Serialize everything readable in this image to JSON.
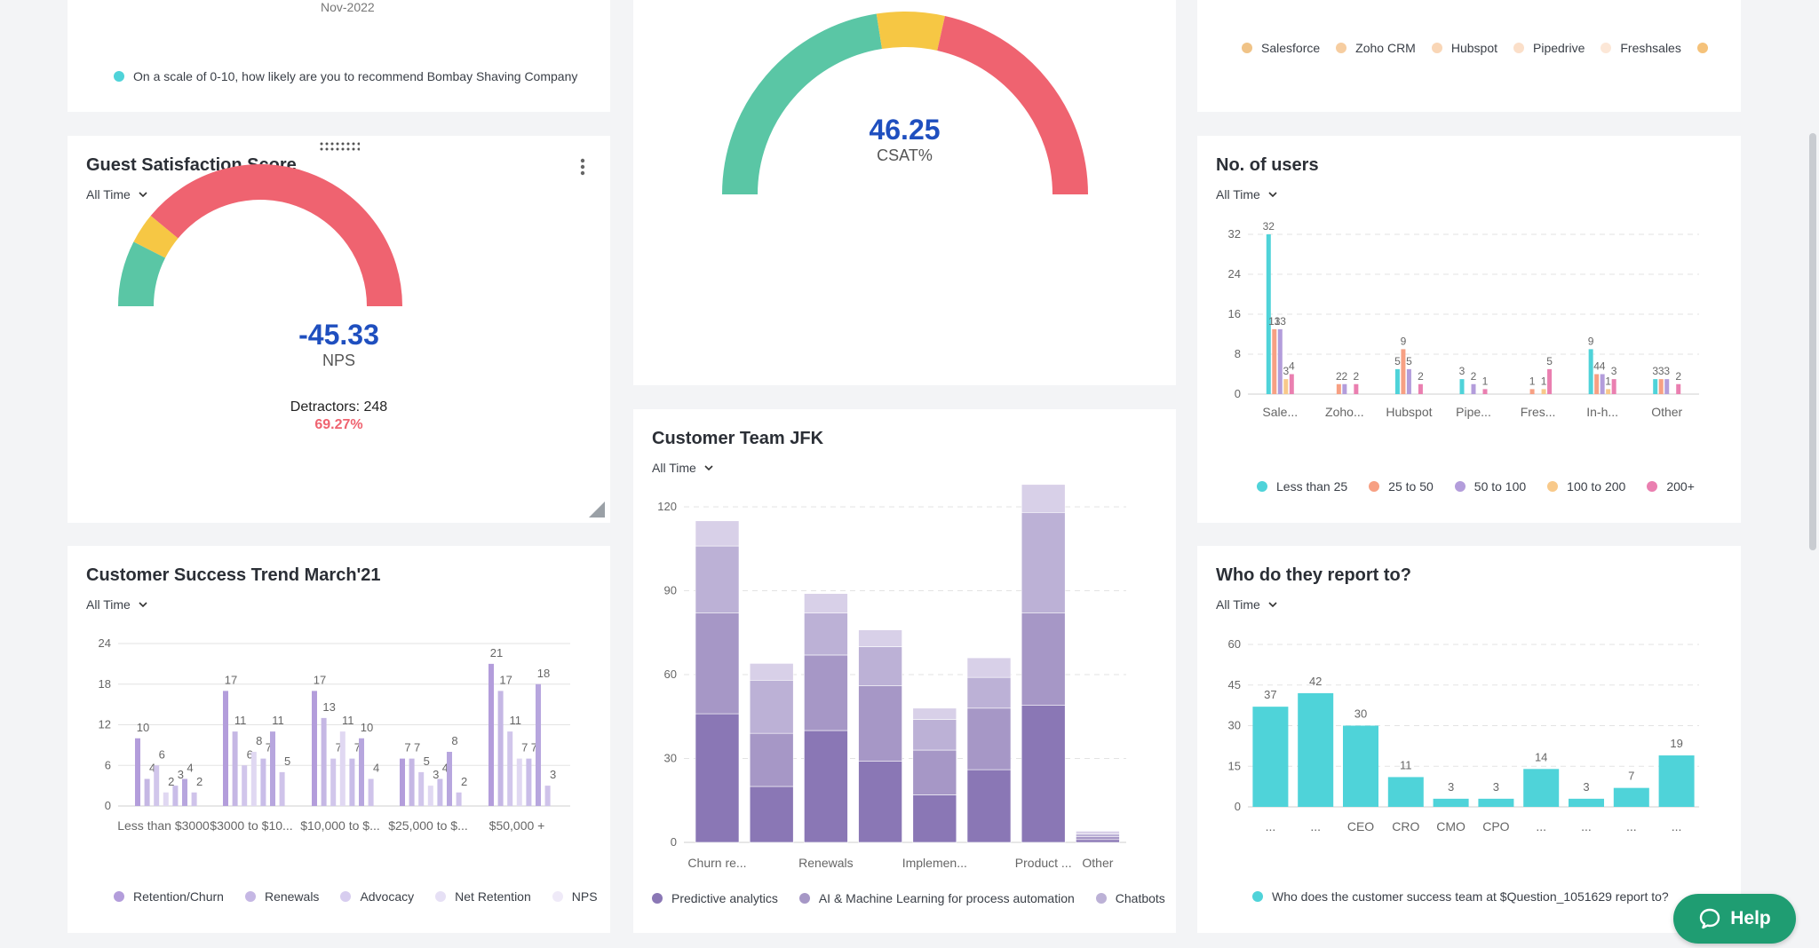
{
  "nps_card": {
    "partial_date": "Nov-2022",
    "legend": "On a scale of 0-10, how likely are you to recommend Bombay Shaving Company"
  },
  "gss_card": {
    "title": "Guest Satisfaction Score",
    "filter": "All Time",
    "value": "-45.33",
    "metric": "NPS",
    "detractors_label": "Detractors: 248",
    "detractors_pct": "69.27%",
    "gauge": {
      "promoters_fraction": 0.15,
      "passives_fraction": 0.07,
      "detractors_fraction": 0.78
    },
    "colors": {
      "green": "#5ac6a5",
      "yellow": "#f6c744",
      "red": "#ef6370",
      "value": "#1f4fbf",
      "pct": "#ef6370"
    }
  },
  "csat_card": {
    "value": "46.25",
    "metric": "CSAT%",
    "gauge": {
      "green_fraction": 0.45,
      "yellow_fraction": 0.12,
      "red_fraction": 0.43
    }
  },
  "crm_card": {
    "legend": [
      {
        "name": "Salesforce",
        "color": "#f0c387"
      },
      {
        "name": "Zoho CRM",
        "color": "#f6cda0"
      },
      {
        "name": "Hubspot",
        "color": "#f9d6b6"
      },
      {
        "name": "Pipedrive",
        "color": "#fbdfc9"
      },
      {
        "name": "Freshsales",
        "color": "#fce7d7"
      },
      {
        "name": "",
        "color": "#f5c27a"
      }
    ]
  },
  "users_card": {
    "title": "No. of users",
    "filter": "All Time",
    "chart_data": {
      "type": "bar",
      "categories": [
        "Sale...",
        "Zoho...",
        "Hubspot",
        "Pipe...",
        "Fres...",
        "In-h...",
        "Other"
      ],
      "yticks": [
        "0",
        "8",
        "16",
        "24",
        "32"
      ],
      "ylim": [
        0,
        32
      ],
      "series": [
        {
          "name": "Less than 25",
          "color": "#4fd3d9",
          "values": [
            32,
            0,
            5,
            3,
            0,
            9,
            3
          ]
        },
        {
          "name": "25 to 50",
          "color": "#f7a083",
          "values": [
            13,
            2,
            9,
            0,
            1,
            4,
            3
          ]
        },
        {
          "name": "50 to 100",
          "color": "#b39ddb",
          "values": [
            13,
            2,
            5,
            2,
            0,
            4,
            3
          ]
        },
        {
          "name": "100 to 200",
          "color": "#f8c98a",
          "values": [
            3,
            0,
            0,
            0,
            1,
            1,
            0
          ]
        },
        {
          "name": "200+",
          "color": "#ea7fb0",
          "values": [
            4,
            2,
            2,
            1,
            5,
            3,
            2
          ]
        }
      ]
    }
  },
  "team_card": {
    "title": "Customer Team JFK",
    "filter": "All Time",
    "chart_data": {
      "type": "bar",
      "categories": [
        "Churn re...",
        "",
        "Renewals",
        "",
        "Implemen...",
        "",
        "Product ...",
        "Other"
      ],
      "yticks": [
        "0",
        "30",
        "60",
        "90",
        "120"
      ],
      "ylim": [
        0,
        120
      ],
      "series": [
        {
          "name": "Predictive analytics",
          "color": "#8a77b5",
          "values": [
            46,
            20,
            40,
            29,
            17,
            26,
            49,
            1
          ]
        },
        {
          "name": "AI & Machine Learning for process automation",
          "color": "#a697c6",
          "values": [
            36,
            19,
            27,
            27,
            16,
            22,
            33,
            1
          ]
        },
        {
          "name": "Chatbots",
          "color": "#bcb1d6",
          "values": [
            24,
            19,
            15,
            14,
            11,
            11,
            36,
            1
          ]
        },
        {
          "name": "",
          "color": "#d8d0e8",
          "values": [
            9,
            6,
            7,
            6,
            4,
            7,
            10,
            1
          ]
        }
      ]
    }
  },
  "trend_card": {
    "title": "Customer Success Trend March'21",
    "filter": "All Time",
    "chart_data": {
      "type": "bar",
      "categories": [
        "Less than $3000",
        "$3000 to $10...",
        "$10,000 to $...",
        "$25,000 to $...",
        "$50,000 +"
      ],
      "yticks": [
        "0",
        "6",
        "12",
        "18",
        "24"
      ],
      "ylim": [
        0,
        24
      ],
      "groups": [
        [
          10,
          4,
          6,
          2,
          3,
          4,
          2
        ],
        [
          17,
          11,
          6,
          8,
          7,
          11,
          5
        ],
        [
          17,
          13,
          7,
          11,
          7,
          10,
          4
        ],
        [
          7,
          7,
          5,
          3,
          4,
          8,
          2
        ],
        [
          21,
          17,
          11,
          7,
          7,
          18,
          3
        ]
      ],
      "bar_colors": [
        "#b39ddb",
        "#c5b7e4",
        "#d1c6eb",
        "#e0d8f2",
        "#c9bde8",
        "#b7a6de",
        "#cfc3ea"
      ],
      "legend": [
        {
          "name": "Retention/Churn",
          "color": "#b39ddb"
        },
        {
          "name": "Renewals",
          "color": "#c5b7e4"
        },
        {
          "name": "Advocacy",
          "color": "#d7cdef"
        },
        {
          "name": "Net Retention",
          "color": "#e6e0f5"
        },
        {
          "name": "NPS",
          "color": "#efeaf8"
        }
      ]
    }
  },
  "report_card": {
    "title": "Who do they report to?",
    "filter": "All Time",
    "chart_data": {
      "type": "bar",
      "categories": [
        "...",
        "...",
        "CEO",
        "CRO",
        "CMO",
        "CPO",
        "...",
        "...",
        "...",
        "..."
      ],
      "values": [
        37,
        42,
        30,
        11,
        3,
        3,
        14,
        3,
        7,
        19
      ],
      "yticks": [
        "0",
        "15",
        "30",
        "45",
        "60"
      ],
      "ylim": [
        0,
        60
      ],
      "color": "#4fd3d9",
      "legend": "Who does the customer success team at $Question_1051629 report to?"
    }
  },
  "help": {
    "label": "Help"
  }
}
